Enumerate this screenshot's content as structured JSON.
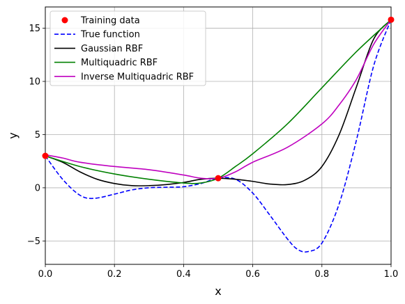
{
  "chart_data": {
    "type": "line",
    "title": "",
    "xlabel": "x",
    "ylabel": "y",
    "xlim": [
      0,
      1
    ],
    "ylim": [
      -7.2,
      17
    ],
    "x_ticks": [
      0.0,
      0.2,
      0.4,
      0.6,
      0.8,
      1.0
    ],
    "x_tick_labels": [
      "0.0",
      "0.2",
      "0.4",
      "0.6",
      "0.8",
      "1.0"
    ],
    "y_ticks": [
      -5,
      0,
      5,
      10,
      15
    ],
    "y_tick_labels": [
      "−5",
      "0",
      "5",
      "10",
      "15"
    ],
    "grid": true,
    "legend_position": "top-left",
    "series": [
      {
        "name": "Training data",
        "style": "markers",
        "color": "#ff0000",
        "x": [
          0.0,
          0.5,
          1.0
        ],
        "y": [
          3.0,
          0.9,
          15.8
        ]
      },
      {
        "name": "True function",
        "style": "dashed",
        "color": "#0000ff",
        "x": [
          0.0,
          0.05,
          0.1,
          0.14,
          0.2,
          0.25,
          0.3,
          0.35,
          0.4,
          0.45,
          0.5,
          0.55,
          0.6,
          0.65,
          0.7,
          0.73,
          0.76,
          0.8,
          0.85,
          0.9,
          0.95,
          1.0
        ],
        "y": [
          3.0,
          0.8,
          -0.7,
          -1.0,
          -0.6,
          -0.2,
          0.0,
          0.05,
          0.1,
          0.4,
          0.9,
          0.8,
          -0.5,
          -2.6,
          -4.8,
          -5.8,
          -6.0,
          -5.2,
          -1.5,
          4.5,
          11.5,
          15.8
        ]
      },
      {
        "name": "Gaussian RBF",
        "style": "solid",
        "color": "#000000",
        "x": [
          0.0,
          0.05,
          0.1,
          0.15,
          0.2,
          0.25,
          0.3,
          0.35,
          0.4,
          0.45,
          0.5,
          0.55,
          0.6,
          0.65,
          0.7,
          0.75,
          0.8,
          0.85,
          0.9,
          0.95,
          1.0
        ],
        "y": [
          3.0,
          2.4,
          1.5,
          0.8,
          0.4,
          0.2,
          0.2,
          0.3,
          0.5,
          0.8,
          0.9,
          0.8,
          0.6,
          0.35,
          0.3,
          0.7,
          2.0,
          5.0,
          9.5,
          14.0,
          15.8
        ]
      },
      {
        "name": "Multiquadric RBF",
        "style": "solid",
        "color": "#008000",
        "x": [
          0.0,
          0.1,
          0.2,
          0.3,
          0.4,
          0.45,
          0.5,
          0.55,
          0.6,
          0.7,
          0.8,
          0.9,
          1.0
        ],
        "y": [
          3.0,
          2.0,
          1.3,
          0.8,
          0.45,
          0.45,
          0.9,
          2.0,
          3.2,
          6.0,
          9.4,
          12.8,
          15.8
        ]
      },
      {
        "name": "Inverse Multiquadric RBF",
        "style": "solid",
        "color": "#bf00bf",
        "x": [
          0.0,
          0.05,
          0.1,
          0.2,
          0.3,
          0.4,
          0.45,
          0.5,
          0.55,
          0.6,
          0.7,
          0.8,
          0.85,
          0.9,
          0.95,
          1.0
        ],
        "y": [
          3.1,
          2.8,
          2.4,
          2.0,
          1.7,
          1.2,
          0.9,
          0.9,
          1.5,
          2.4,
          3.8,
          6.0,
          7.8,
          10.2,
          13.5,
          15.8
        ]
      }
    ]
  }
}
